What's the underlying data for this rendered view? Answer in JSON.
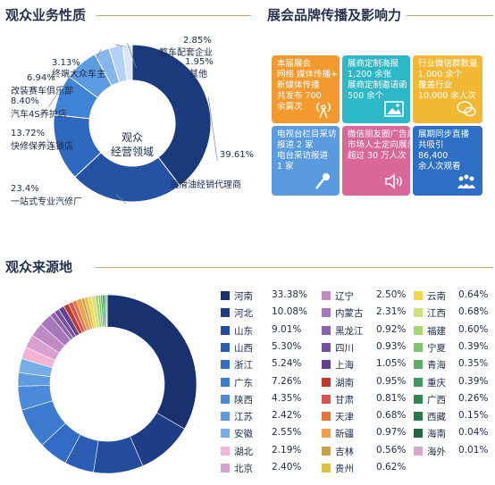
{
  "sections": {
    "nature": "观众业务性质",
    "brand": "展会品牌传播及影响力",
    "origin": "观众来源地"
  },
  "chart_data": [
    {
      "type": "pie",
      "title": "观众业务性质",
      "center_label": [
        "观众",
        "经营领域"
      ],
      "slices": [
        {
          "label": "润滑油经销代理商",
          "value": 39.61,
          "color": "#1b3a7c"
        },
        {
          "label": "一站式专业汽修厂",
          "value": 23.4,
          "color": "#2552a3"
        },
        {
          "label": "快修保养连锁店",
          "value": 13.72,
          "color": "#2f69bf"
        },
        {
          "label": "汽车4S养护店",
          "value": 8.4,
          "color": "#3f83d6"
        },
        {
          "label": "改装赛车俱乐部",
          "value": 6.94,
          "color": "#5b9be2"
        },
        {
          "label": "终端大众车主",
          "value": 3.13,
          "color": "#86b6ec"
        },
        {
          "label": "整车配套企业",
          "value": 2.85,
          "color": "#b3d1f4"
        },
        {
          "label": "其他",
          "value": 1.95,
          "color": "#d8e7fa"
        }
      ],
      "display_values": {
        "润滑油经销代理商": "39.61%",
        "一站式专业汽修厂": "23.4%",
        "快修保养连锁店": "13.72%",
        "汽车4S养护店": "8.40%",
        "改装赛车俱乐部": "6.94%",
        "终端大众车主": "3.13%",
        "整车配套企业": "2.85%",
        "其他": "1.95%"
      }
    },
    {
      "type": "pie",
      "title": "观众来源地",
      "slices": [
        {
          "label": "河南",
          "value": 33.38,
          "pct": "33.38%",
          "color": "#1a3170"
        },
        {
          "label": "河北",
          "value": 10.08,
          "pct": "10.08%",
          "color": "#1f3d86"
        },
        {
          "label": "山东",
          "value": 9.01,
          "pct": "9.01%",
          "color": "#244c9d"
        },
        {
          "label": "山西",
          "value": 5.3,
          "pct": "5.30%",
          "color": "#2b5cb3"
        },
        {
          "label": "浙江",
          "value": 5.24,
          "pct": "5.24%",
          "color": "#336cc4"
        },
        {
          "label": "广东",
          "value": 7.26,
          "pct": "7.26%",
          "color": "#3c7bd0"
        },
        {
          "label": "陕西",
          "value": 4.35,
          "pct": "4.35%",
          "color": "#4a8ad8"
        },
        {
          "label": "江苏",
          "value": 2.42,
          "pct": "2.42%",
          "color": "#5d9ade"
        },
        {
          "label": "安徽",
          "value": 2.55,
          "pct": "2.55%",
          "color": "#77ade6"
        },
        {
          "label": "湖北",
          "value": 2.19,
          "pct": "2.19%",
          "color": "#f3b3d2"
        },
        {
          "label": "北京",
          "value": 2.4,
          "pct": "2.40%",
          "color": "#d6a0cf"
        },
        {
          "label": "辽宁",
          "value": 2.5,
          "pct": "2.50%",
          "color": "#c08ac4"
        },
        {
          "label": "内蒙古",
          "value": 2.31,
          "pct": "2.31%",
          "color": "#a777b9"
        },
        {
          "label": "黑龙江",
          "value": 0.92,
          "pct": "0.92%",
          "color": "#8e63ab"
        },
        {
          "label": "四川",
          "value": 0.93,
          "pct": "0.93%",
          "color": "#74519c"
        },
        {
          "label": "上海",
          "value": 1.05,
          "pct": "1.05%",
          "color": "#5f4290"
        },
        {
          "label": "湖南",
          "value": 0.95,
          "pct": "0.95%",
          "color": "#c0392b"
        },
        {
          "label": "甘肃",
          "value": 0.81,
          "pct": "0.81%",
          "color": "#d9534f"
        },
        {
          "label": "天津",
          "value": 0.68,
          "pct": "0.68%",
          "color": "#e8743b"
        },
        {
          "label": "新疆",
          "value": 0.97,
          "pct": "0.97%",
          "color": "#f0a04b"
        },
        {
          "label": "吉林",
          "value": 0.56,
          "pct": "0.56%",
          "color": "#c9a24a"
        },
        {
          "label": "贵州",
          "value": 0.62,
          "pct": "0.62%",
          "color": "#e2c141"
        },
        {
          "label": "云南",
          "value": 0.64,
          "pct": "0.64%",
          "color": "#f2d64b"
        },
        {
          "label": "江西",
          "value": 0.68,
          "pct": "0.68%",
          "color": "#cfe27a"
        },
        {
          "label": "福建",
          "value": 0.6,
          "pct": "0.60%",
          "color": "#a9d46f"
        },
        {
          "label": "宁夏",
          "value": 0.39,
          "pct": "0.39%",
          "color": "#7fc36b"
        },
        {
          "label": "青海",
          "value": 0.35,
          "pct": "0.35%",
          "color": "#5cae63"
        },
        {
          "label": "重庆",
          "value": 0.39,
          "pct": "0.39%",
          "color": "#3d9a5a"
        },
        {
          "label": "广西",
          "value": 0.26,
          "pct": "0.26%",
          "color": "#2e8a50"
        },
        {
          "label": "西藏",
          "value": 0.15,
          "pct": "0.15%",
          "color": "#257a47"
        },
        {
          "label": "海南",
          "value": 0.04,
          "pct": "0.04%",
          "color": "#1f6a3e"
        },
        {
          "label": "海外",
          "value": 0.01,
          "pct": "0.01%",
          "color": "#d9a7c9"
        }
      ]
    }
  ],
  "brand_tiles": [
    {
      "lines": [
        "本届展会",
        "网络 媒体传播+",
        "新媒体传播",
        "共发布 700",
        "余篇次"
      ],
      "icon": "broadcast-icon",
      "color": "#f29a2e"
    },
    {
      "lines": [
        "展商定制海报",
        "1,200 余张",
        "展商定制邀请函",
        "500 余个"
      ],
      "icon": "image-icon",
      "color": "#2cb8c6"
    },
    {
      "lines": [
        "行业微信群数量",
        "1,000 余个",
        "覆盖行业",
        "10,000 余人次"
      ],
      "icon": "chat-icon",
      "color": "#f3b833"
    },
    {
      "lines": [
        "电视台栏目采访",
        "报道 2 家",
        "电台采访报道",
        "1 家"
      ],
      "icon": "microphone-icon",
      "color": "#5a9be0"
    },
    {
      "lines": [
        "微信朋友圈广告后",
        "市场人士定向展示",
        "超过 30 万人次"
      ],
      "icon": "speaker-icon",
      "color": "#d9679a"
    },
    {
      "lines": [
        "展期同步直播",
        "共吸引",
        "86,400",
        "余人次观看"
      ],
      "icon": "audience-icon",
      "color": "#2c6fc4"
    }
  ]
}
